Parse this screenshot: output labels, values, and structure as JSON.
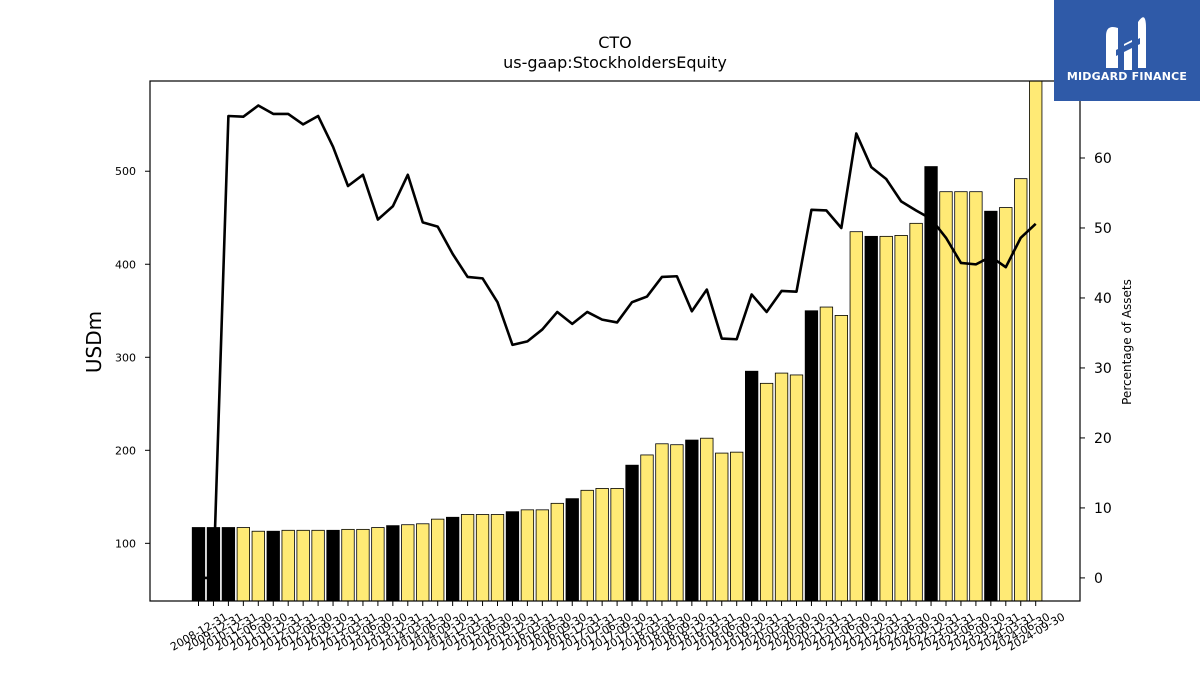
{
  "colors": {
    "black_bar": "#000000",
    "yellow_bar": "#ffea75",
    "line": "#000000",
    "logo_bg": "#2f5aa8"
  },
  "logo": {
    "text": "MIDGARD FINANCE",
    "icon": "midgard-logo-icon"
  },
  "chart_data": {
    "type": "bar",
    "title": "CTO",
    "subtitle": "us-gaap:StockholdersEquity",
    "ylabel": "USDm",
    "y2label": "Percentage of Assets",
    "ylim": [
      38,
      597
    ],
    "y2lim": [
      -3.3,
      71.0
    ],
    "yticks": [
      100,
      200,
      300,
      400,
      500
    ],
    "y2ticks": [
      0,
      10,
      20,
      30,
      40,
      50,
      60
    ],
    "categories": [
      "2008-12-31",
      "2009-12-31",
      "2010-12-31",
      "2011-06-30",
      "2011-09-30",
      "2011-12-31",
      "2012-03-31",
      "2012-06-30",
      "2012-09-30",
      "2012-12-31",
      "2013-03-31",
      "2013-06-30",
      "2013-09-30",
      "2013-12-31",
      "2014-03-31",
      "2014-06-30",
      "2014-09-30",
      "2014-12-31",
      "2015-03-31",
      "2015-06-30",
      "2015-09-30",
      "2015-12-31",
      "2016-03-31",
      "2016-06-30",
      "2016-09-30",
      "2016-12-31",
      "2017-03-31",
      "2017-06-30",
      "2017-09-30",
      "2017-12-31",
      "2018-03-31",
      "2018-06-30",
      "2018-09-30",
      "2018-12-31",
      "2019-03-31",
      "2019-06-30",
      "2019-09-30",
      "2019-12-31",
      "2020-03-31",
      "2020-06-30",
      "2020-09-30",
      "2020-12-31",
      "2021-03-31",
      "2021-06-30",
      "2021-09-30",
      "2021-12-31",
      "2022-03-31",
      "2022-06-30",
      "2022-09-30",
      "2022-12-31",
      "2023-03-31",
      "2023-06-30",
      "2023-09-30",
      "2023-12-31",
      "2024-03-31",
      "2024-06-30",
      "2024-09-30"
    ],
    "quarterly_flags": [
      0,
      0,
      0,
      1,
      1,
      0,
      1,
      1,
      1,
      0,
      1,
      1,
      1,
      0,
      1,
      1,
      1,
      0,
      1,
      1,
      1,
      0,
      1,
      1,
      1,
      0,
      1,
      1,
      1,
      0,
      1,
      1,
      1,
      0,
      1,
      1,
      1,
      0,
      1,
      1,
      1,
      0,
      1,
      1,
      1,
      0,
      1,
      1,
      1,
      0,
      1,
      1,
      1,
      0,
      1,
      1,
      1
    ],
    "series": [
      {
        "name": "",
        "type": "bar",
        "axis": "left",
        "values": [
          117,
          117,
          117,
          117,
          113,
          113,
          114,
          114,
          114,
          114,
          115,
          115,
          117,
          119,
          120,
          121,
          126,
          128,
          131,
          131,
          131,
          134,
          136,
          136,
          143,
          148,
          157,
          159,
          159,
          184,
          195,
          207,
          206,
          211,
          213,
          197,
          198,
          285,
          272,
          283,
          281,
          350,
          354,
          345,
          435,
          430,
          430,
          431,
          444,
          505,
          478,
          478,
          478,
          457,
          461,
          492,
          597
        ]
      },
      {
        "name": "",
        "type": "line",
        "axis": "right",
        "values": [
          0,
          0,
          66.0,
          65.9,
          67.5,
          66.3,
          66.3,
          64.8,
          66.0,
          61.6,
          56.0,
          57.6,
          51.2,
          53.1,
          57.6,
          50.8,
          50.2,
          46.3,
          43.0,
          42.8,
          39.4,
          33.3,
          33.8,
          35.5,
          38.0,
          36.3,
          38.0,
          36.9,
          36.5,
          39.4,
          40.2,
          43.0,
          43.1,
          38.1,
          41.2,
          34.2,
          34.1,
          40.5,
          38.0,
          41.0,
          40.9,
          52.6,
          52.5,
          50.0,
          63.5,
          58.7,
          57.0,
          53.8,
          52.5,
          51.3,
          48.6,
          45.0,
          44.8,
          45.9,
          44.4,
          48.6,
          50.6
        ]
      }
    ]
  }
}
